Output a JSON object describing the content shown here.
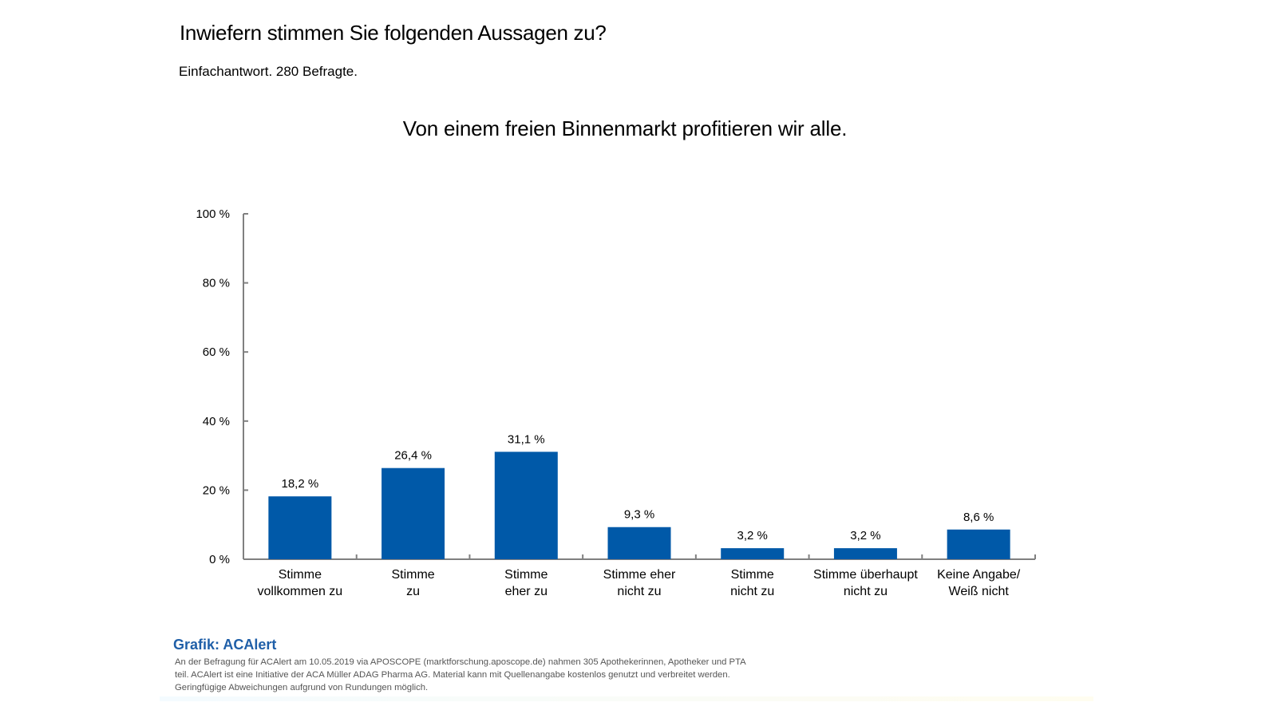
{
  "header": {
    "title": "Inwiefern stimmen Sie folgenden Aussagen zu?",
    "subtitle": "Einfachantwort. 280 Befragte."
  },
  "chart_data": {
    "type": "bar",
    "title": "Von einem freien Binnenmarkt profitieren wir alle.",
    "categories": [
      [
        "Stimme",
        "vollkommen zu"
      ],
      [
        "Stimme",
        "zu"
      ],
      [
        "Stimme",
        "eher zu"
      ],
      [
        "Stimme eher",
        "nicht zu"
      ],
      [
        "Stimme",
        "nicht zu"
      ],
      [
        "Stimme überhaupt",
        "nicht zu"
      ],
      [
        "Keine Angabe/",
        "Weiß nicht"
      ]
    ],
    "values": [
      18.2,
      26.4,
      31.1,
      9.3,
      3.2,
      3.2,
      8.6
    ],
    "value_labels": [
      "18,2 %",
      "26,4 %",
      "31,1 %",
      "9,3 %",
      "3,2 %",
      "3,2 %",
      "8,6 %"
    ],
    "ylim": [
      0,
      100
    ],
    "yticks": [
      0,
      20,
      40,
      60,
      80,
      100
    ],
    "ytick_labels": [
      "0 %",
      "20 %",
      "40 %",
      "60 %",
      "80 %",
      "100 %"
    ],
    "xlabel": "",
    "ylabel": "",
    "grid": false,
    "bar_color": "#0059a8",
    "axis_color": "#808080"
  },
  "footer": {
    "credit": "Grafik: ACAlert",
    "note": "An der Befragung für ACAlert am 10.05.2019 via APOSCOPE (marktforschung.aposcope.de) nahmen 305 Apothekerinnen, Apotheker und PTA teil. ACAlert ist eine Initiative der ACA Müller ADAG Pharma AG. Material kann mit Quellenangabe kostenlos genutzt und verbreitet werden. Geringfügige Abweichungen aufgrund von Rundungen möglich."
  }
}
